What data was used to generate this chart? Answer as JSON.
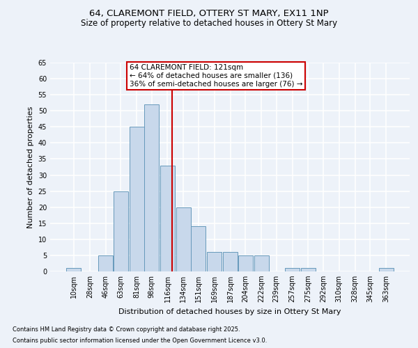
{
  "title1": "64, CLAREMONT FIELD, OTTERY ST MARY, EX11 1NP",
  "title2": "Size of property relative to detached houses in Ottery St Mary",
  "xlabel": "Distribution of detached houses by size in Ottery St Mary",
  "ylabel": "Number of detached properties",
  "footnote1": "Contains HM Land Registry data © Crown copyright and database right 2025.",
  "footnote2": "Contains public sector information licensed under the Open Government Licence v3.0.",
  "annotation_title": "64 CLAREMONT FIELD: 121sqm",
  "annotation_line1": "← 64% of detached houses are smaller (136)",
  "annotation_line2": "36% of semi-detached houses are larger (76) →",
  "vline_x": 121,
  "bar_color": "#c8d8eb",
  "bar_edge_color": "#6699bb",
  "vline_color": "#cc0000",
  "annotation_box_color": "#ffffff",
  "annotation_box_edge": "#cc0000",
  "bg_color": "#edf2f9",
  "grid_color": "#ffffff",
  "categories": [
    10,
    28,
    46,
    63,
    81,
    98,
    116,
    134,
    151,
    169,
    187,
    204,
    222,
    239,
    257,
    275,
    292,
    310,
    328,
    345,
    363
  ],
  "values": [
    1,
    0,
    5,
    25,
    45,
    52,
    33,
    20,
    14,
    6,
    6,
    5,
    5,
    0,
    1,
    1,
    0,
    0,
    0,
    0,
    1
  ],
  "bin_width": 17,
  "ylim": [
    0,
    65
  ],
  "yticks": [
    0,
    5,
    10,
    15,
    20,
    25,
    30,
    35,
    40,
    45,
    50,
    55,
    60,
    65
  ],
  "title1_fontsize": 9.5,
  "title2_fontsize": 8.5,
  "xlabel_fontsize": 8,
  "ylabel_fontsize": 8,
  "tick_fontsize": 7,
  "annot_fontsize": 7.5,
  "footnote_fontsize": 6
}
